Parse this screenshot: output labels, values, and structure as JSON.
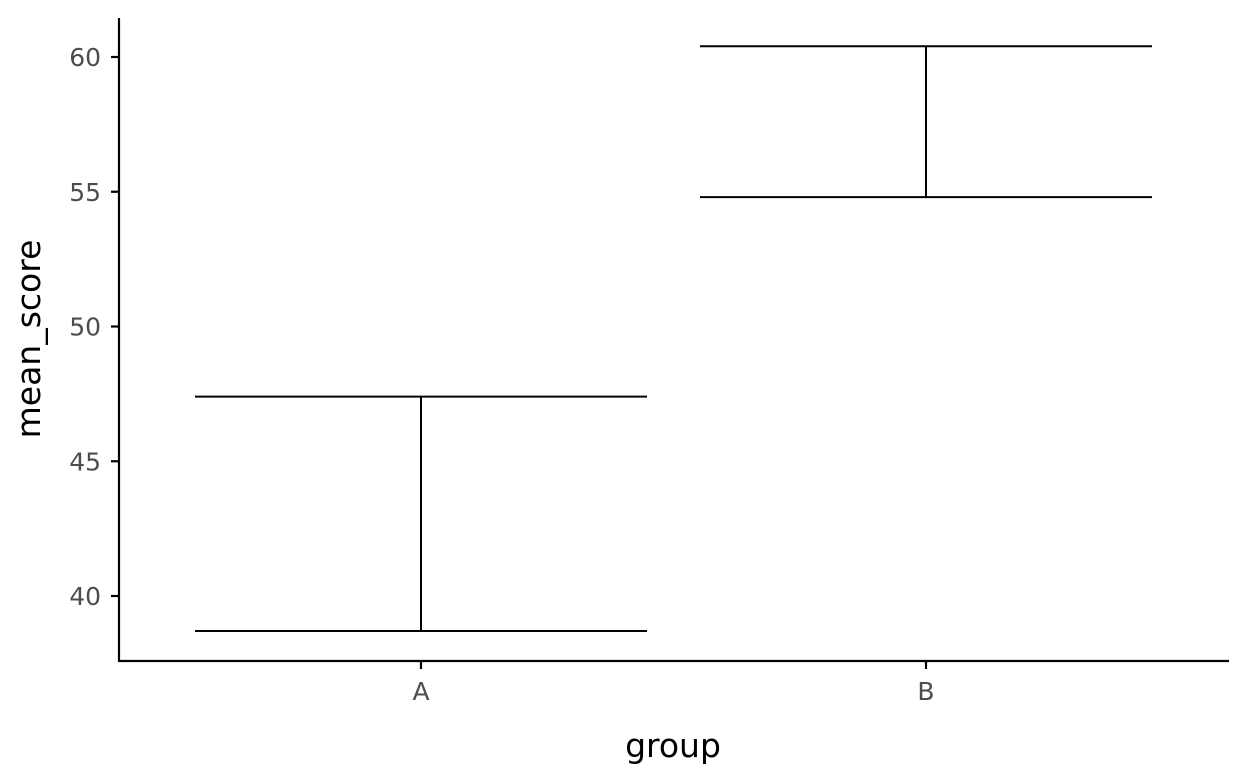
{
  "chart_data": {
    "type": "errorbar",
    "xlabel": "group",
    "ylabel": "mean_score",
    "categories": [
      "A",
      "B"
    ],
    "series": [
      {
        "values": [
          {
            "x": "A",
            "ymin": 38.7,
            "ymax": 47.4
          },
          {
            "x": "B",
            "ymin": 54.8,
            "ymax": 60.4
          }
        ]
      }
    ],
    "yticks": [
      40,
      45,
      50,
      55,
      60
    ],
    "ylim": [
      37.6,
      61.5
    ],
    "grid": false,
    "legend": "none",
    "colors": {
      "line": "#000000",
      "tick_text": "#4d4d4d",
      "background": "#ffffff"
    }
  }
}
